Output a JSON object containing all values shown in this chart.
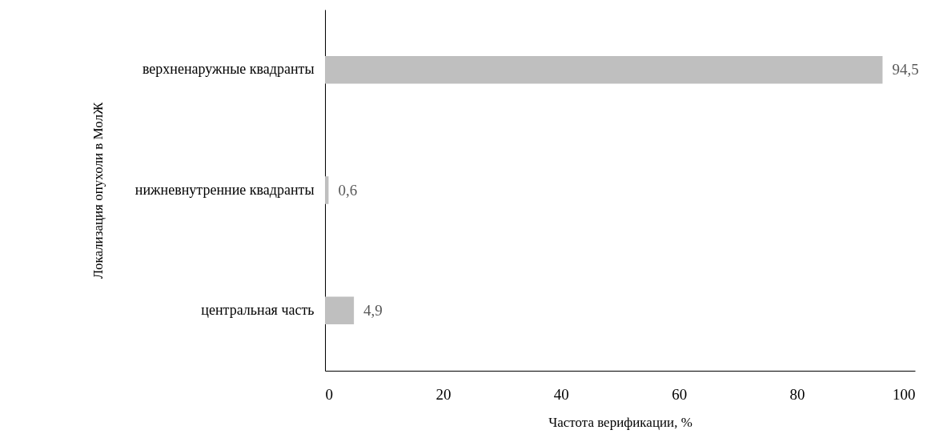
{
  "chart_data": {
    "type": "bar",
    "orientation": "horizontal",
    "xlabel": "Частота верификации, %",
    "ylabel": "Локализация опухоли в МолЖ",
    "categories": [
      "верхненаружные квадранты",
      "нижневнутренние квадранты",
      "центральная часть"
    ],
    "values": [
      94.5,
      0.6,
      4.9
    ],
    "value_labels": [
      "94,5",
      "0,6",
      "4,9"
    ],
    "color": "#bfbfbf",
    "xlim": [
      0,
      100
    ],
    "xticks": [
      0,
      20,
      40,
      60,
      80,
      100
    ]
  }
}
